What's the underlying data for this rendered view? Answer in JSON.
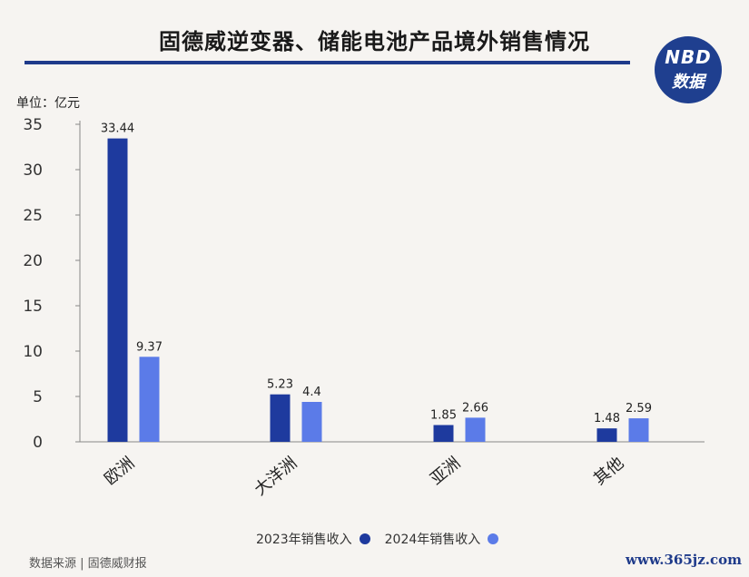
{
  "header": {
    "title": "固德威逆变器、储能电池产品境外销售情况"
  },
  "logo": {
    "line1": "NBD",
    "line2": "数据"
  },
  "unit_label": "单位：亿元",
  "legend": {
    "items": [
      {
        "label": "2023年销售收入",
        "color": "#1e3a9e"
      },
      {
        "label": "2024年销售收入",
        "color": "#5b7be8"
      }
    ]
  },
  "source": "数据来源 | 固德威财报",
  "watermark": "www.365jz.com",
  "chart_data": {
    "type": "bar",
    "categories": [
      "欧洲",
      "大洋洲",
      "亚洲",
      "其他"
    ],
    "series": [
      {
        "name": "2023年销售收入",
        "values": [
          33.44,
          5.23,
          1.85,
          1.48
        ],
        "labels": [
          "33.44",
          "5.23",
          "1.85",
          "1.48"
        ],
        "color": "#1e3a9e"
      },
      {
        "name": "2024年销售收入",
        "values": [
          9.37,
          4.4,
          2.66,
          2.59
        ],
        "labels": [
          "9.37",
          "4.4",
          "2.66",
          "2.59"
        ],
        "color": "#5b7be8"
      }
    ],
    "ylabel": "单位：亿元",
    "ylim": [
      0,
      35
    ],
    "yticks": [
      0,
      5,
      10,
      15,
      20,
      25,
      30,
      35
    ],
    "grid": false,
    "legend_position": "bottom"
  }
}
